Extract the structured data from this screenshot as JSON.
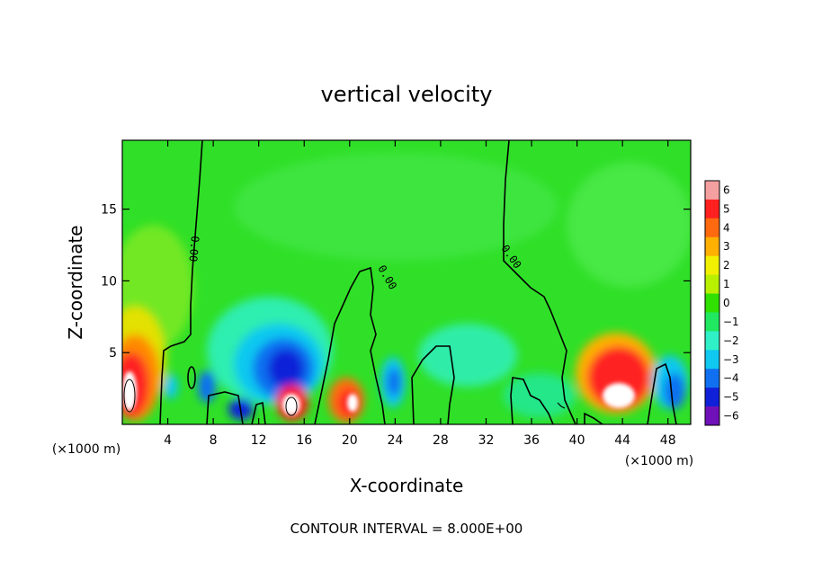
{
  "chart_data": {
    "type": "heatmap",
    "title": "vertical velocity",
    "xlabel": "X-coordinate",
    "ylabel": "Z-coordinate",
    "x_unit_label": "(×1000 m)",
    "x_unit_label_right": "(×1000 m)",
    "footer": "CONTOUR INTERVAL = 8.000E+00",
    "xlim": [
      0,
      50
    ],
    "ylim": [
      0,
      19.8
    ],
    "x_ticks": [
      4,
      8,
      12,
      16,
      20,
      24,
      28,
      32,
      36,
      40,
      44,
      48
    ],
    "y_ticks": [
      5,
      10,
      15
    ],
    "contour_labels": [
      "0.00",
      "0.00",
      "0.00"
    ],
    "colorbar": {
      "levels": [
        6,
        5,
        4,
        3,
        2,
        1,
        0,
        -1,
        -2,
        -3,
        -4,
        -5,
        -6
      ],
      "colors": [
        "#f5a0a0",
        "#ff2020",
        "#ff6a10",
        "#ffb000",
        "#f0f000",
        "#b8f000",
        "#30e000",
        "#20e860",
        "#30f0c8",
        "#10c8f0",
        "#1070f0",
        "#1020d8",
        "#7010b8"
      ]
    },
    "features": [
      {
        "x": 0.8,
        "z": 2.5,
        "w": 4,
        "kind": "updraft"
      },
      {
        "x": 2.5,
        "z": 2.5,
        "w": -2,
        "kind": "downdraft"
      },
      {
        "x": 14.0,
        "z": 3.5,
        "w": -5,
        "kind": "downdraft"
      },
      {
        "x": 15.0,
        "z": 1.8,
        "w": 5,
        "kind": "updraft"
      },
      {
        "x": 10.0,
        "z": 1.2,
        "w": -4,
        "kind": "downdraft"
      },
      {
        "x": 19.5,
        "z": 1.8,
        "w": 4,
        "kind": "updraft"
      },
      {
        "x": 23.5,
        "z": 3.0,
        "w": -3,
        "kind": "downdraft"
      },
      {
        "x": 43.5,
        "z": 2.5,
        "w": 4,
        "kind": "updraft"
      },
      {
        "x": 47.5,
        "z": 2.5,
        "w": -3,
        "kind": "downdraft"
      }
    ]
  }
}
